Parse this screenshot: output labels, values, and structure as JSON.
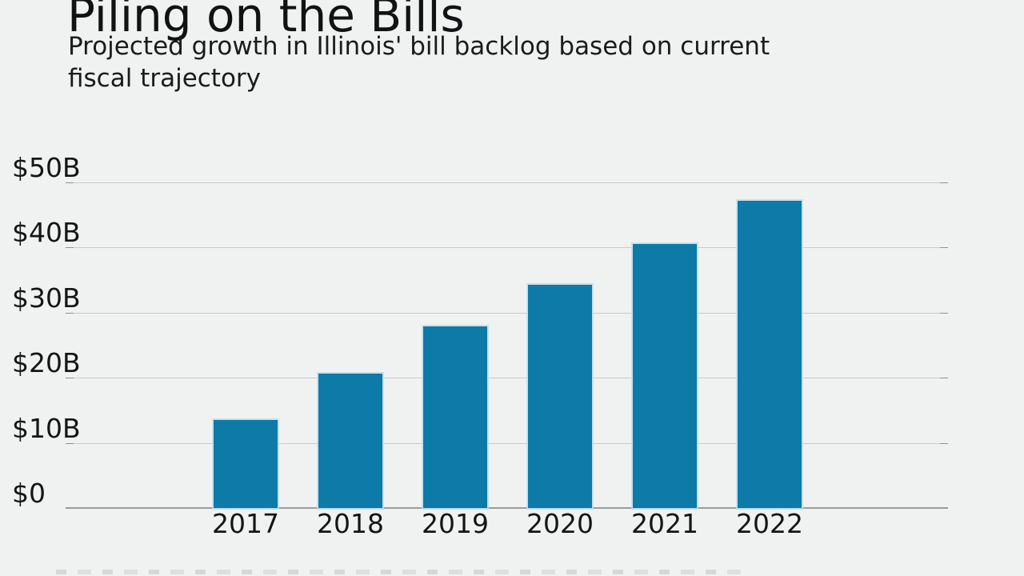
{
  "header": {
    "title": "Piling on the Bills",
    "subtitle_line1": "Projected growth in Illinois' bill backlog based on current",
    "subtitle_line2": "fiscal trajectory"
  },
  "chart_data": {
    "type": "bar",
    "title": "Piling on the Bills",
    "subtitle": "Projected growth in Illinois' bill backlog based on current fiscal trajectory",
    "categories": [
      "2017",
      "2018",
      "2019",
      "2020",
      "2021",
      "2022"
    ],
    "values": [
      13.5,
      20.6,
      27.9,
      34.3,
      40.6,
      47.2
    ],
    "unit": "billions of dollars",
    "xlabel": "",
    "ylabel": "",
    "ylim": [
      0,
      50
    ],
    "grid": true,
    "legend": "none",
    "y_ticks": [
      {
        "label": "$50B",
        "value": 50
      },
      {
        "label": "$40B",
        "value": 40
      },
      {
        "label": "$30B",
        "value": 30
      },
      {
        "label": "$20B",
        "value": 20
      },
      {
        "label": "$10B",
        "value": 10
      },
      {
        "label": "$0",
        "value": 0
      }
    ],
    "colors": {
      "bar": "#0d7aa8",
      "bar_edge": "#bedeee",
      "gridline": "#c8c9c9",
      "axis_line": "#9b9d9d",
      "background": "#f0f2f1",
      "text": "#141414"
    }
  }
}
